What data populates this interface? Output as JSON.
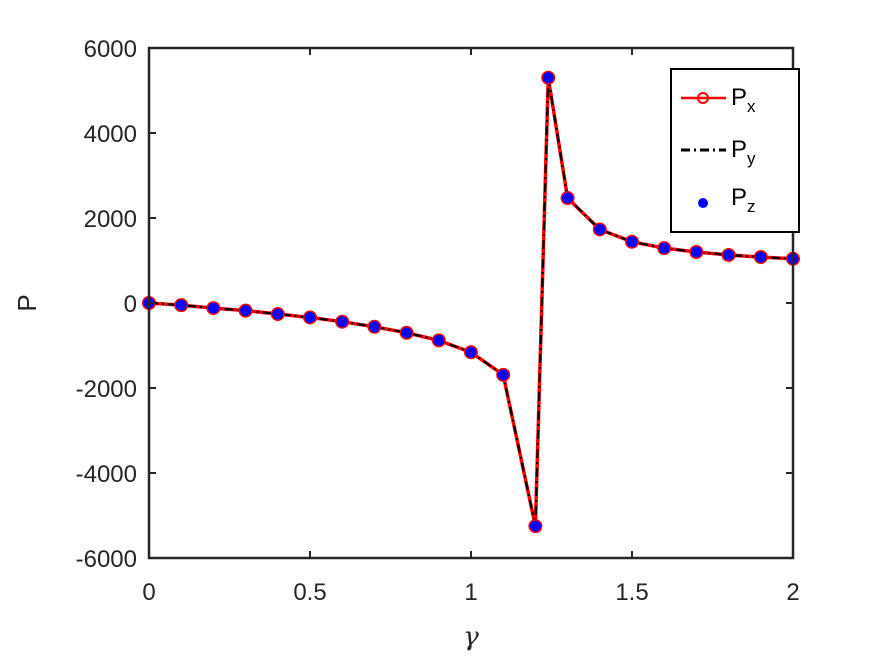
{
  "chart_data": {
    "type": "line",
    "xlabel": "γ",
    "ylabel": "P",
    "xlim": [
      0,
      2
    ],
    "ylim": [
      -6000,
      6000
    ],
    "xticks": [
      "0",
      "0.5",
      "1",
      "1.5",
      "2"
    ],
    "yticks": [
      "6000",
      "4000",
      "2000",
      "0",
      "-2000",
      "-4000",
      "-6000"
    ],
    "xtick_values": [
      0,
      0.5,
      1,
      1.5,
      2
    ],
    "ytick_values": [
      6000,
      4000,
      2000,
      0,
      -2000,
      -4000,
      -6000
    ],
    "grid": false,
    "legend_position": "top-right",
    "x": [
      0,
      0.1,
      0.2,
      0.3,
      0.4,
      0.5,
      0.6,
      0.7,
      0.8,
      0.9,
      1.0,
      1.1,
      1.2,
      1.24,
      1.3,
      1.4,
      1.5,
      1.6,
      1.7,
      1.8,
      1.9,
      2.0
    ],
    "series": [
      {
        "name_base": "P",
        "name_sub": "x",
        "style": "line-circle",
        "color": "#ff0000",
        "values": [
          0,
          -50,
          -120,
          -180,
          -260,
          -340,
          -440,
          -560,
          -700,
          -880,
          -1160,
          -1690,
          -5250,
          5300,
          2470,
          1730,
          1440,
          1290,
          1200,
          1130,
          1080,
          1040
        ]
      },
      {
        "name_base": "P",
        "name_sub": "y",
        "style": "dash-dot",
        "color": "#000000",
        "values": [
          0,
          -50,
          -120,
          -180,
          -260,
          -340,
          -440,
          -560,
          -700,
          -880,
          -1160,
          -1690,
          -5250,
          5300,
          2470,
          1730,
          1440,
          1290,
          1200,
          1130,
          1080,
          1040
        ]
      },
      {
        "name_base": "P",
        "name_sub": "z",
        "style": "marker-dot",
        "color": "#0000ff",
        "values": [
          0,
          -50,
          -120,
          -180,
          -260,
          -340,
          -440,
          -560,
          -700,
          -880,
          -1160,
          -1690,
          -5250,
          5300,
          2470,
          1730,
          1440,
          1290,
          1200,
          1130,
          1080,
          1040
        ]
      }
    ]
  }
}
